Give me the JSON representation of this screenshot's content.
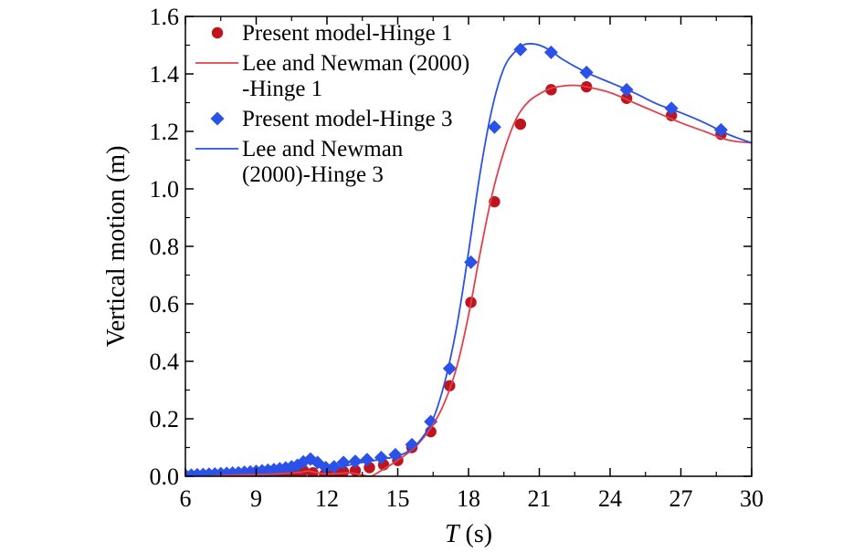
{
  "chart_data": {
    "type": "line",
    "title": "",
    "xlabel_italic": "T",
    "xlabel_unit": " (s)",
    "ylabel": "Vertical motion (m)",
    "xlim": [
      6,
      30
    ],
    "ylim": [
      0,
      1.6
    ],
    "x_ticks": [
      6,
      9,
      12,
      15,
      18,
      21,
      24,
      27,
      30
    ],
    "x_tick_labels": [
      "6",
      "9",
      "12",
      "15",
      "18",
      "21",
      "24",
      "27",
      "30"
    ],
    "y_ticks": [
      0,
      0.2,
      0.4,
      0.6,
      0.8,
      1.0,
      1.2,
      1.4,
      1.6
    ],
    "y_tick_labels": [
      "0.0",
      "0.2",
      "0.4",
      "0.6",
      "0.8",
      "1.0",
      "1.2",
      "1.4",
      "1.6"
    ],
    "grid": false,
    "legend_position": "top-left",
    "legend": [
      {
        "lines": [
          "Present model-Hinge 1"
        ],
        "marker": "circle",
        "color": "#c0141c"
      },
      {
        "lines": [
          "Lee and Newman (2000)",
          "-Hinge 1"
        ],
        "marker": "line",
        "color": "#e0414e"
      },
      {
        "lines": [
          "Present model-Hinge 3"
        ],
        "marker": "diamond",
        "color": "#2a52e8"
      },
      {
        "lines": [
          "Lee and Newman",
          "(2000)-Hinge 3"
        ],
        "marker": "line",
        "color": "#2a52e8"
      }
    ],
    "series": [
      {
        "name": "Present model-Hinge 1",
        "style": "marker",
        "marker": "circle",
        "color": "#c0141c",
        "x": [
          6.0,
          6.25,
          6.5,
          6.75,
          7.0,
          7.25,
          7.5,
          7.75,
          8.0,
          8.25,
          8.5,
          8.75,
          9.0,
          9.25,
          9.5,
          9.75,
          10.0,
          10.25,
          10.5,
          10.75,
          11.0,
          11.4,
          11.9,
          12.3,
          12.7,
          13.2,
          13.8,
          14.4,
          15.0,
          15.6,
          16.4,
          17.2,
          18.1,
          19.1,
          20.2,
          21.5,
          23.0,
          24.7,
          26.6,
          28.7
        ],
        "y": [
          0.0,
          0.0,
          0.001,
          0.001,
          0.002,
          0.002,
          0.003,
          0.003,
          0.004,
          0.004,
          0.005,
          0.005,
          0.006,
          0.007,
          0.007,
          0.008,
          0.009,
          0.01,
          0.012,
          0.014,
          0.02,
          0.012,
          0.006,
          0.01,
          0.016,
          0.02,
          0.03,
          0.04,
          0.055,
          0.1,
          0.155,
          0.315,
          0.605,
          0.955,
          1.225,
          1.345,
          1.355,
          1.315,
          1.255,
          1.19
        ]
      },
      {
        "name": "Lee and Newman (2000)-Hinge 1",
        "style": "line",
        "color": "#e0414e",
        "x": [
          6,
          7,
          8,
          9,
          10,
          10.8,
          11.2,
          11.6,
          12,
          12.5,
          13,
          13.4,
          13.8,
          14.0,
          14.3,
          14.8,
          15.5,
          16.0,
          16.5,
          17.0,
          17.5,
          18.0,
          18.5,
          19.0,
          19.5,
          20.0,
          20.5,
          21.0,
          21.5,
          22.0,
          22.5,
          23.0,
          24.0,
          25.0,
          26.0,
          27.0,
          28.0,
          29.0,
          30.0
        ],
        "y": [
          0.0,
          0.002,
          0.004,
          0.006,
          0.009,
          0.013,
          0.018,
          0.012,
          0.008,
          0.01,
          0.012,
          0.006,
          0.0,
          0.005,
          0.02,
          0.045,
          0.085,
          0.125,
          0.18,
          0.26,
          0.38,
          0.56,
          0.78,
          0.98,
          1.13,
          1.24,
          1.3,
          1.33,
          1.35,
          1.358,
          1.36,
          1.355,
          1.335,
          1.3,
          1.265,
          1.23,
          1.2,
          1.17,
          1.16
        ]
      },
      {
        "name": "Present model-Hinge 3",
        "style": "marker",
        "marker": "diamond",
        "color": "#2a52e8",
        "x": [
          6.0,
          6.25,
          6.5,
          6.75,
          7.0,
          7.25,
          7.5,
          7.75,
          8.0,
          8.25,
          8.5,
          8.75,
          9.0,
          9.25,
          9.5,
          9.75,
          10.0,
          10.25,
          10.5,
          10.75,
          11.0,
          11.3,
          11.6,
          11.95,
          12.3,
          12.7,
          13.2,
          13.7,
          14.3,
          14.9,
          15.6,
          16.4,
          17.2,
          18.1,
          19.1,
          20.2,
          21.5,
          23.0,
          24.7,
          26.6,
          28.7
        ],
        "y": [
          0.003,
          0.004,
          0.005,
          0.006,
          0.007,
          0.008,
          0.009,
          0.01,
          0.011,
          0.012,
          0.014,
          0.015,
          0.017,
          0.019,
          0.021,
          0.023,
          0.026,
          0.029,
          0.033,
          0.038,
          0.05,
          0.06,
          0.048,
          0.03,
          0.033,
          0.048,
          0.052,
          0.058,
          0.065,
          0.075,
          0.11,
          0.19,
          0.375,
          0.745,
          1.215,
          1.485,
          1.475,
          1.405,
          1.345,
          1.28,
          1.205
        ]
      },
      {
        "name": "Lee and Newman (2000)-Hinge 3",
        "style": "line",
        "color": "#2a52e8",
        "x": [
          6,
          7,
          8,
          9,
          10,
          10.5,
          11,
          11.3,
          11.7,
          12,
          12.5,
          13,
          13.5,
          14,
          14.5,
          15,
          15.5,
          16,
          16.5,
          17,
          17.5,
          18,
          18.5,
          19,
          19.5,
          20,
          20.3,
          20.6,
          21,
          21.5,
          22,
          23,
          24,
          25,
          26,
          27,
          28,
          29,
          30
        ],
        "y": [
          0.003,
          0.006,
          0.01,
          0.016,
          0.024,
          0.03,
          0.042,
          0.046,
          0.035,
          0.025,
          0.03,
          0.04,
          0.048,
          0.055,
          0.062,
          0.07,
          0.09,
          0.13,
          0.2,
          0.33,
          0.52,
          0.78,
          1.06,
          1.28,
          1.42,
          1.48,
          1.5,
          1.505,
          1.5,
          1.48,
          1.45,
          1.405,
          1.37,
          1.335,
          1.295,
          1.265,
          1.23,
          1.19,
          1.16
        ]
      }
    ]
  }
}
